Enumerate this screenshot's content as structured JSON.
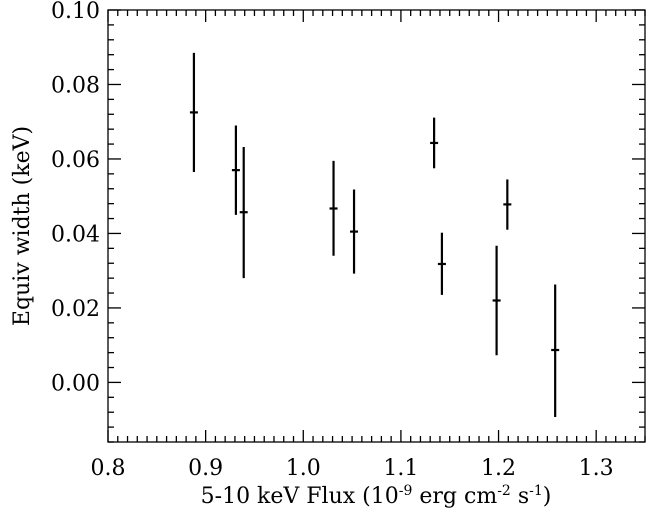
{
  "chart_data": {
    "type": "scatter",
    "title": "",
    "xlabel": "5-10 keV Flux (10",
    "xlabel_parts": [
      {
        "text": "5-10 keV Flux (10",
        "sup": false
      },
      {
        "text": "-9",
        "sup": true
      },
      {
        "text": " erg cm",
        "sup": false
      },
      {
        "text": "-2",
        "sup": true
      },
      {
        "text": " s",
        "sup": false
      },
      {
        "text": "-1",
        "sup": true
      },
      {
        "text": ")",
        "sup": false
      }
    ],
    "ylabel": "Equiv width (keV)",
    "xlim": [
      0.8,
      1.35
    ],
    "ylim": [
      -0.016,
      0.1
    ],
    "grid": false,
    "x_ticks": [
      0.8,
      0.9,
      1.0,
      1.1,
      1.2,
      1.3
    ],
    "x_tick_labels": [
      "0.8",
      "0.9",
      "1.0",
      "1.1",
      "1.2",
      "1.3"
    ],
    "y_ticks": [
      0.0,
      0.02,
      0.04,
      0.06,
      0.08,
      0.1
    ],
    "y_tick_labels": [
      "0.00",
      "0.02",
      "0.04",
      "0.06",
      "0.08",
      "0.10"
    ],
    "series": [
      {
        "points": [
          {
            "x": 0.888,
            "y": 0.0725,
            "ylo": 0.0565,
            "yhi": 0.0885
          },
          {
            "x": 0.931,
            "y": 0.057,
            "ylo": 0.045,
            "yhi": 0.069
          },
          {
            "x": 0.939,
            "y": 0.0457,
            "ylo": 0.028,
            "yhi": 0.0632
          },
          {
            "x": 1.031,
            "y": 0.0467,
            "ylo": 0.034,
            "yhi": 0.0595
          },
          {
            "x": 1.052,
            "y": 0.0405,
            "ylo": 0.0292,
            "yhi": 0.0518
          },
          {
            "x": 1.134,
            "y": 0.0643,
            "ylo": 0.0575,
            "yhi": 0.0711
          },
          {
            "x": 1.142,
            "y": 0.0318,
            "ylo": 0.0235,
            "yhi": 0.0402
          },
          {
            "x": 1.198,
            "y": 0.022,
            "ylo": 0.0073,
            "yhi": 0.0367
          },
          {
            "x": 1.209,
            "y": 0.0478,
            "ylo": 0.041,
            "yhi": 0.0545
          },
          {
            "x": 1.258,
            "y": 0.0087,
            "ylo": -0.0093,
            "yhi": 0.0263
          }
        ]
      }
    ]
  }
}
